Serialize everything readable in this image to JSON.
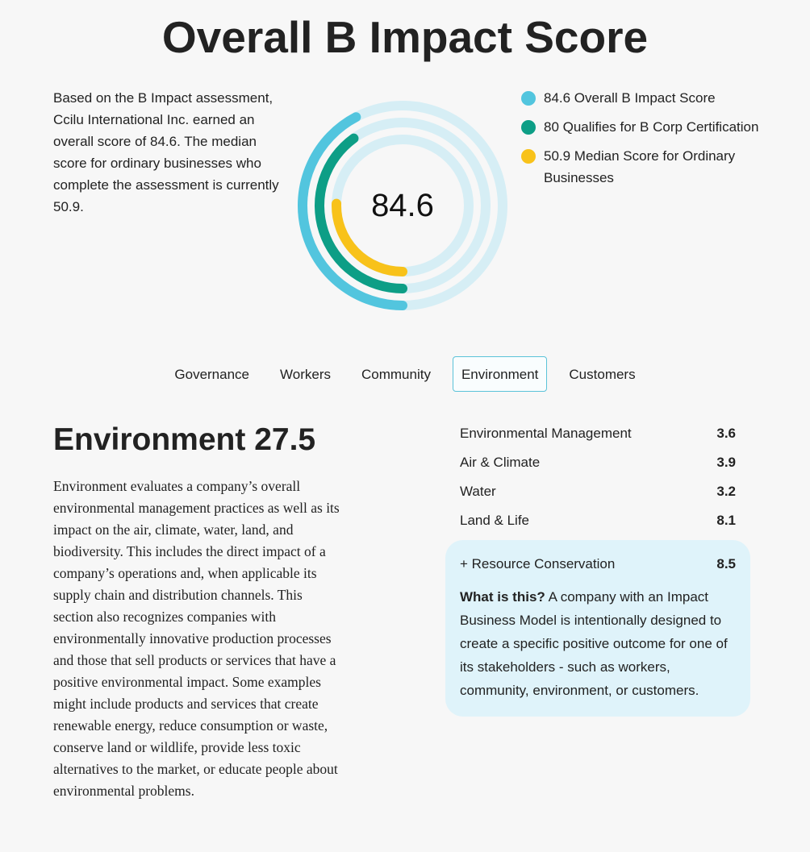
{
  "header": {
    "title": "Overall B Impact Score"
  },
  "summary": {
    "text": "Based on the B Impact assessment, Ccilu International Inc. earned an overall score of 84.6. The median score for ordinary businesses who complete the assessment is currently 50.9."
  },
  "gauge": {
    "center_label": "84.6",
    "track_color": "#d6eef5",
    "rings": [
      {
        "name": "overall",
        "value": 84.6,
        "color": "#52c5de"
      },
      {
        "name": "bcorp",
        "value": 80,
        "color": "#0d9e86"
      },
      {
        "name": "median",
        "value": 50.9,
        "color": "#f8c21a"
      }
    ],
    "max": 200
  },
  "legend": {
    "items": [
      {
        "label": "84.6 Overall B Impact Score",
        "color": "#52c5de"
      },
      {
        "label": "80 Qualifies for B Corp Certification",
        "color": "#0d9e86"
      },
      {
        "label": "50.9 Median Score for Ordinary Businesses",
        "color": "#f8c21a"
      }
    ]
  },
  "tabs": [
    {
      "label": "Governance",
      "active": false
    },
    {
      "label": "Workers",
      "active": false
    },
    {
      "label": "Community",
      "active": false
    },
    {
      "label": "Environment",
      "active": true
    },
    {
      "label": "Customers",
      "active": false
    }
  ],
  "section": {
    "title": "Environment 27.5",
    "description": "Environment evaluates a company’s overall environmental management practices as well as its impact on the air, climate, water, land, and biodiversity. This includes the direct impact of a company’s operations and, when applicable its supply chain and distribution channels. This section also recognizes companies with environmentally innovative production processes and those that sell products or services that have a positive environmental impact. Some examples might include products and services that create renewable energy, reduce consumption or waste, conserve land or wildlife, provide less toxic alternatives to the market, or educate people about environmental problems."
  },
  "scores": {
    "rows": [
      {
        "label": "Environmental Management",
        "value": "3.6"
      },
      {
        "label": "Air & Climate",
        "value": "3.9"
      },
      {
        "label": "Water",
        "value": "3.2"
      },
      {
        "label": "Land & Life",
        "value": "8.1"
      }
    ],
    "highlight": {
      "label": "+ Resource Conservation",
      "value": "8.5",
      "what_is_title": "What is this?",
      "what_is_text": " A company with an Impact Business Model is intentionally designed to create a specific positive outcome for one of its stakeholders - such as workers, community, environment, or customers."
    }
  }
}
